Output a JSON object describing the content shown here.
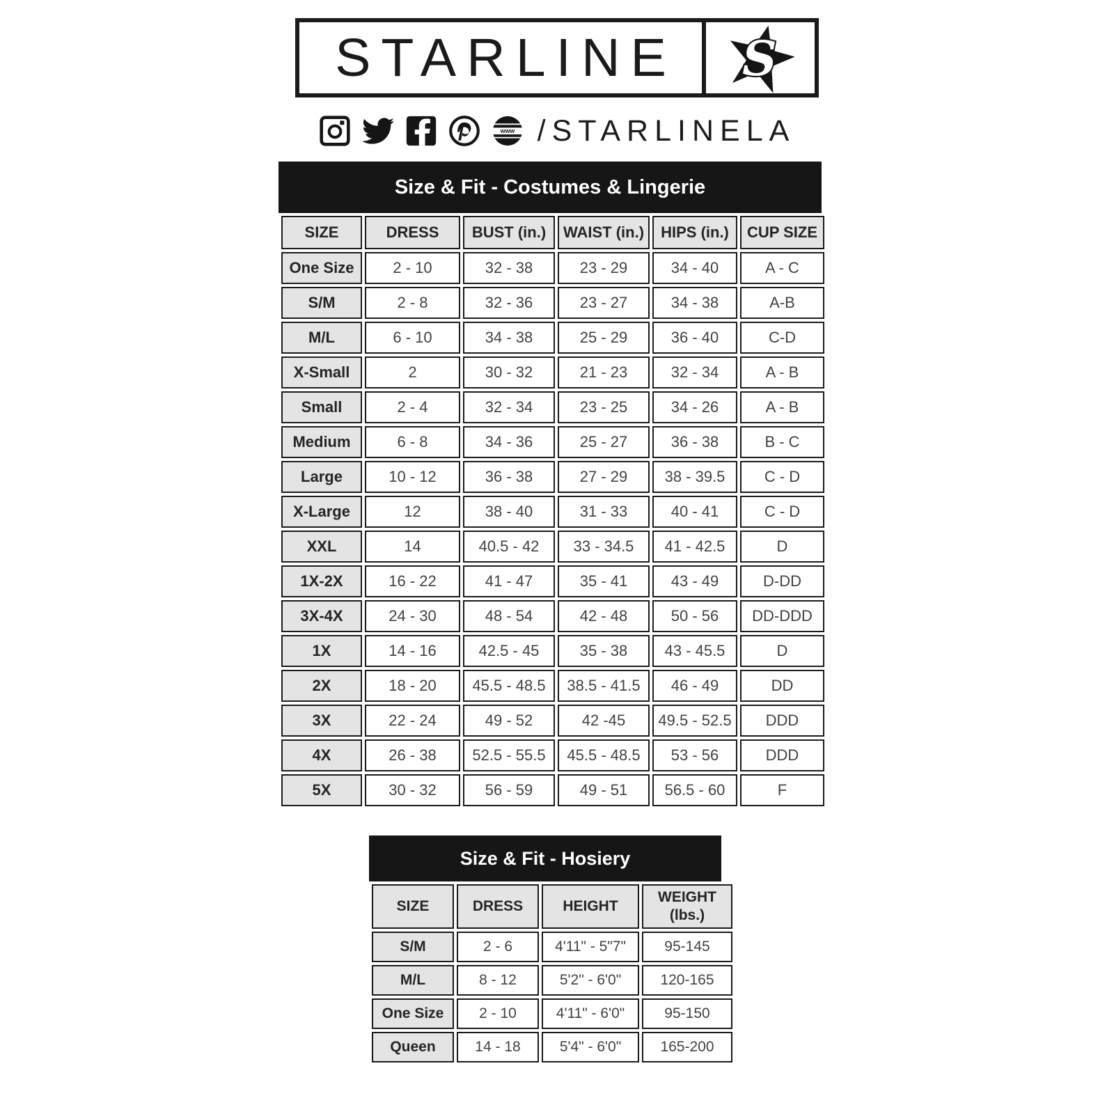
{
  "logo": {
    "brand": "STARLINE",
    "star_icon": "starline-star-icon",
    "star_letter": "S"
  },
  "social": {
    "icons": [
      "instagram-icon",
      "twitter-icon",
      "facebook-icon",
      "pinterest-icon",
      "www-globe-icon"
    ],
    "www_label": "www",
    "handle": "/STARLINELA"
  },
  "costumes_table": {
    "title": "Size & Fit - Costumes & Lingerie",
    "headers": [
      "SIZE",
      "DRESS",
      "BUST (in.)",
      "WAIST (in.)",
      "HIPS (in.)",
      "CUP SIZE"
    ],
    "rows": [
      [
        "One Size",
        "2 - 10",
        "32 - 38",
        "23 - 29",
        "34 - 40",
        "A - C"
      ],
      [
        "S/M",
        "2 - 8",
        "32 - 36",
        "23 - 27",
        "34 - 38",
        "A-B"
      ],
      [
        "M/L",
        "6 - 10",
        "34 - 38",
        "25 - 29",
        "36 - 40",
        "C-D"
      ],
      [
        "X-Small",
        "2",
        "30 - 32",
        "21 - 23",
        "32 - 34",
        "A - B"
      ],
      [
        "Small",
        "2 - 4",
        "32 - 34",
        "23 - 25",
        "34 - 26",
        "A - B"
      ],
      [
        "Medium",
        "6 - 8",
        "34 - 36",
        "25 - 27",
        "36 - 38",
        "B - C"
      ],
      [
        "Large",
        "10 - 12",
        "36 - 38",
        "27 - 29",
        "38 - 39.5",
        "C - D"
      ],
      [
        "X-Large",
        "12",
        "38 - 40",
        "31 - 33",
        "40 - 41",
        "C - D"
      ],
      [
        "XXL",
        "14",
        "40.5 - 42",
        "33 - 34.5",
        "41 - 42.5",
        "D"
      ],
      [
        "1X-2X",
        "16 - 22",
        "41 - 47",
        "35 - 41",
        "43 - 49",
        "D-DD"
      ],
      [
        "3X-4X",
        "24 - 30",
        "48 - 54",
        "42 - 48",
        "50 - 56",
        "DD-DDD"
      ],
      [
        "1X",
        "14 - 16",
        "42.5 - 45",
        "35 - 38",
        "43 - 45.5",
        "D"
      ],
      [
        "2X",
        "18 - 20",
        "45.5 - 48.5",
        "38.5 - 41.5",
        "46 - 49",
        "DD"
      ],
      [
        "3X",
        "22 - 24",
        "49 - 52",
        "42 -45",
        "49.5 - 52.5",
        "DDD"
      ],
      [
        "4X",
        "26 - 38",
        "52.5 - 55.5",
        "45.5 - 48.5",
        "53 - 56",
        "DDD"
      ],
      [
        "5X",
        "30 - 32",
        "56 - 59",
        "49 - 51",
        "56.5 - 60",
        "F"
      ]
    ]
  },
  "hosiery_table": {
    "title": "Size & Fit - Hosiery",
    "headers": [
      "SIZE",
      "DRESS",
      "HEIGHT",
      "WEIGHT\n(lbs.)"
    ],
    "rows": [
      [
        "S/M",
        "2 - 6",
        "4'11\" - 5\"7\"",
        "95-145"
      ],
      [
        "M/L",
        "8 - 12",
        "5'2\" - 6'0\"",
        "120-165"
      ],
      [
        "One Size",
        "2 - 10",
        "4'11\" - 6'0\"",
        "95-150"
      ],
      [
        "Queen",
        "14 - 18",
        "5'4\" - 6'0\"",
        "165-200"
      ]
    ]
  },
  "colors": {
    "ink_black": "#1a1a1a",
    "title_bar_black": "#161616",
    "cell_gray": "#e4e4e4",
    "value_text": "#414141",
    "background": "#ffffff"
  }
}
